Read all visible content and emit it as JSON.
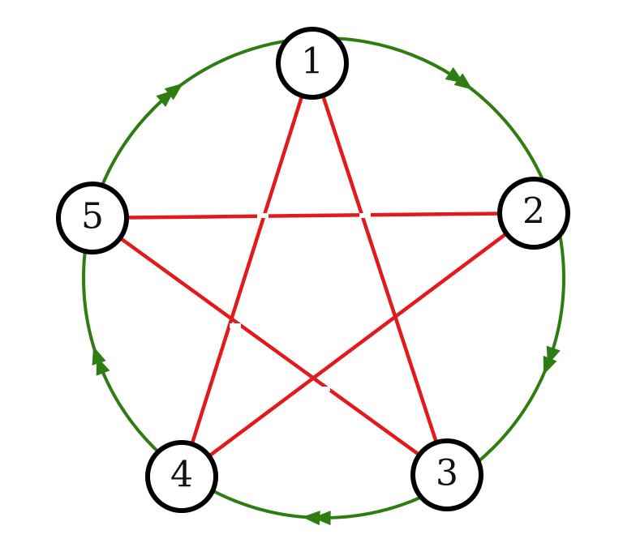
{
  "colors": {
    "cycle": "#2e7d12",
    "chords": "#e31a1c",
    "node_border": "#000000",
    "node_fill": "#ffffff"
  },
  "nodes": [
    {
      "id": 1,
      "label": "1"
    },
    {
      "id": 2,
      "label": "2"
    },
    {
      "id": 3,
      "label": "3"
    },
    {
      "id": 4,
      "label": "4"
    },
    {
      "id": 5,
      "label": "5"
    }
  ],
  "cycle_edges": [
    {
      "from": 1,
      "to": 2,
      "arrows": 2
    },
    {
      "from": 2,
      "to": 3,
      "arrows": 2
    },
    {
      "from": 3,
      "to": 4,
      "arrows": 2
    },
    {
      "from": 4,
      "to": 5,
      "arrows": 2
    },
    {
      "from": 5,
      "to": 1,
      "arrows": 2
    }
  ],
  "chord_edges": [
    {
      "from": 1,
      "to": 3
    },
    {
      "from": 1,
      "to": 4
    },
    {
      "from": 2,
      "to": 4
    },
    {
      "from": 2,
      "to": 5
    },
    {
      "from": 3,
      "to": 5
    }
  ]
}
